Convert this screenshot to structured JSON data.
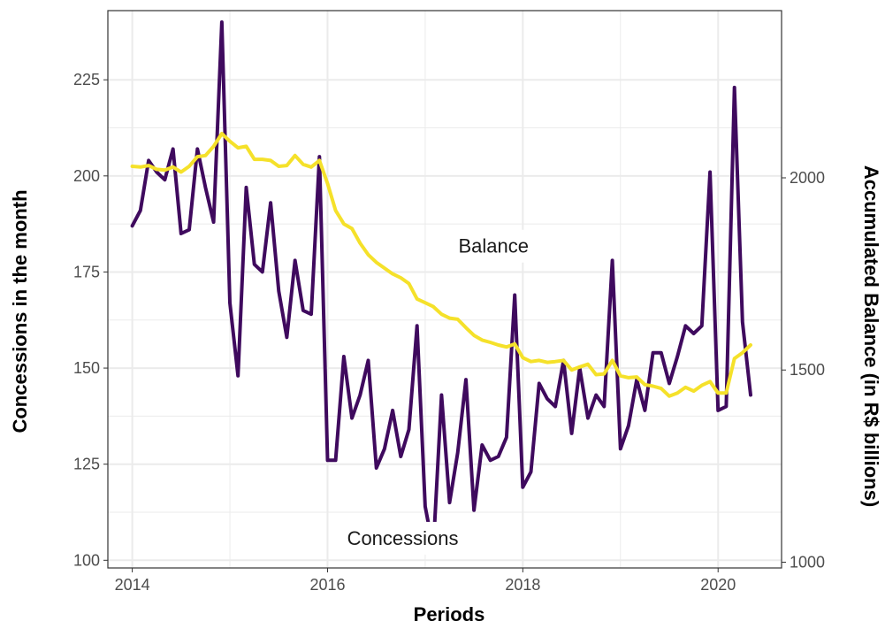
{
  "chart_data": {
    "type": "line",
    "xlabel": "Periods",
    "ylabel_left": "Concessions in the month",
    "ylabel_right": "Accumulated Balance (in R$ billions)",
    "x_ticks": [
      "2014",
      "2016",
      "2018",
      "2020"
    ],
    "y_left_ticks": [
      "100",
      "125",
      "150",
      "175",
      "200",
      "225"
    ],
    "y_right_ticks": [
      "1000",
      "1500",
      "2000"
    ],
    "xlim": [
      2013.75,
      2020.65
    ],
    "ylim_left": [
      98,
      243
    ],
    "ylim_right": [
      985,
      2435
    ],
    "grid": true,
    "colors": {
      "concessions": "#3f0a5e",
      "balance": "#f5e12a",
      "panel_border": "#333333",
      "grid": "#ebebeb"
    },
    "annotations": [
      {
        "text": "Balance",
        "x": 2017.7,
        "y_left": 180,
        "anchor": "middle"
      },
      {
        "text": "Concessions",
        "x": 2016.2,
        "y_left": 104,
        "anchor": "start"
      }
    ],
    "series": [
      {
        "name": "Concessions",
        "axis": "left",
        "x": [
          2014.0,
          2014.083,
          2014.167,
          2014.25,
          2014.333,
          2014.417,
          2014.5,
          2014.583,
          2014.667,
          2014.75,
          2014.833,
          2014.917,
          2015.0,
          2015.083,
          2015.167,
          2015.25,
          2015.333,
          2015.417,
          2015.5,
          2015.583,
          2015.667,
          2015.75,
          2015.833,
          2015.917,
          2016.0,
          2016.083,
          2016.167,
          2016.25,
          2016.333,
          2016.417,
          2016.5,
          2016.583,
          2016.667,
          2016.75,
          2016.833,
          2016.917,
          2017.0,
          2017.083,
          2017.167,
          2017.25,
          2017.333,
          2017.417,
          2017.5,
          2017.583,
          2017.667,
          2017.75,
          2017.833,
          2017.917,
          2018.0,
          2018.083,
          2018.167,
          2018.25,
          2018.333,
          2018.417,
          2018.5,
          2018.583,
          2018.667,
          2018.75,
          2018.833,
          2018.917,
          2019.0,
          2019.083,
          2019.167,
          2019.25,
          2019.333,
          2019.417,
          2019.5,
          2019.583,
          2019.667,
          2019.75,
          2019.833,
          2019.917,
          2020.0,
          2020.083,
          2020.167,
          2020.25,
          2020.333
        ],
        "values": [
          187,
          191,
          204,
          201,
          199,
          207,
          185,
          186,
          207,
          197,
          188,
          240,
          167,
          148,
          197,
          177,
          175,
          193,
          170,
          158,
          178,
          165,
          164,
          205,
          126,
          126,
          153,
          137,
          143,
          152,
          124,
          129,
          139,
          127,
          134,
          161,
          114,
          103,
          143,
          115,
          128,
          147,
          113,
          130,
          126,
          127,
          132,
          169,
          119,
          123,
          146,
          142,
          140,
          152,
          133,
          150,
          137,
          143,
          140,
          178,
          129,
          135,
          147,
          139,
          154,
          154,
          146,
          153,
          161,
          159,
          161,
          201,
          139,
          140,
          223,
          162,
          143
        ]
      },
      {
        "name": "Balance",
        "axis": "right",
        "x": [
          2014.0,
          2014.083,
          2014.167,
          2014.25,
          2014.333,
          2014.417,
          2014.5,
          2014.583,
          2014.667,
          2014.75,
          2014.833,
          2014.917,
          2015.0,
          2015.083,
          2015.167,
          2015.25,
          2015.333,
          2015.417,
          2015.5,
          2015.583,
          2015.667,
          2015.75,
          2015.833,
          2015.917,
          2016.0,
          2016.083,
          2016.167,
          2016.25,
          2016.333,
          2016.417,
          2016.5,
          2016.583,
          2016.667,
          2016.75,
          2016.833,
          2016.917,
          2017.0,
          2017.083,
          2017.167,
          2017.25,
          2017.333,
          2017.417,
          2017.5,
          2017.583,
          2017.667,
          2017.75,
          2017.833,
          2017.917,
          2018.0,
          2018.083,
          2018.167,
          2018.25,
          2018.333,
          2018.417,
          2018.5,
          2018.583,
          2018.667,
          2018.75,
          2018.833,
          2018.917,
          2019.0,
          2019.083,
          2019.167,
          2019.25,
          2019.333,
          2019.417,
          2019.5,
          2019.583,
          2019.667,
          2019.75,
          2019.833,
          2019.917,
          2020.0,
          2020.083,
          2020.167,
          2020.25,
          2020.333
        ],
        "values": [
          2030,
          2028,
          2032,
          2022,
          2020,
          2028,
          2015,
          2030,
          2055,
          2058,
          2082,
          2115,
          2095,
          2078,
          2082,
          2048,
          2048,
          2045,
          2030,
          2032,
          2058,
          2035,
          2028,
          2045,
          1985,
          1915,
          1880,
          1868,
          1830,
          1800,
          1780,
          1765,
          1750,
          1740,
          1725,
          1685,
          1675,
          1665,
          1645,
          1635,
          1632,
          1610,
          1590,
          1578,
          1572,
          1565,
          1560,
          1568,
          1532,
          1522,
          1525,
          1520,
          1522,
          1525,
          1500,
          1508,
          1515,
          1488,
          1490,
          1525,
          1485,
          1480,
          1482,
          1462,
          1458,
          1452,
          1432,
          1440,
          1455,
          1445,
          1460,
          1470,
          1440,
          1440,
          1530,
          1545,
          1565
        ]
      }
    ]
  }
}
